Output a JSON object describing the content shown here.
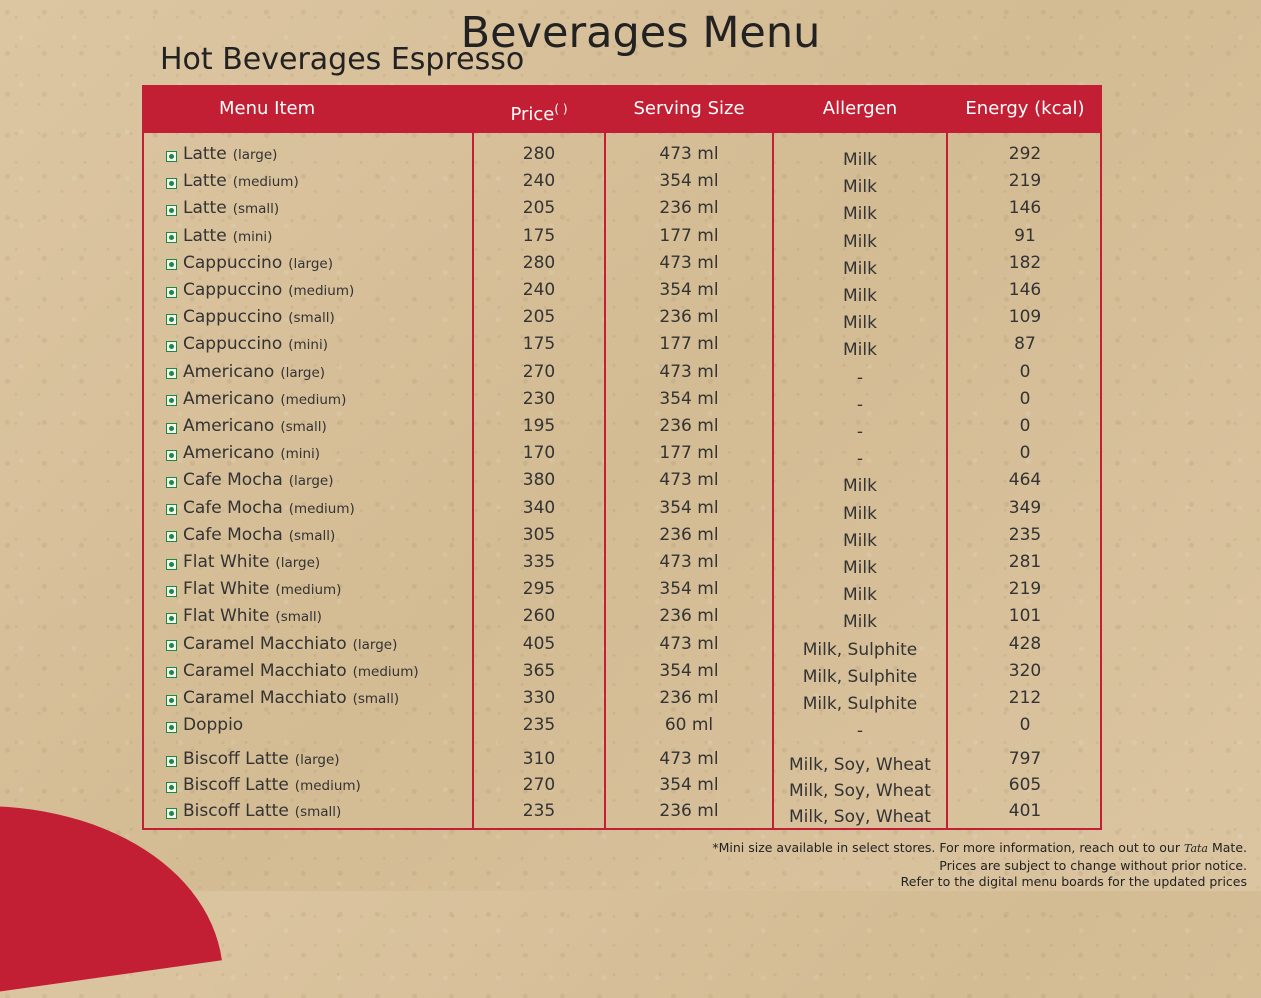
{
  "title": "Beverages Menu",
  "subtitle": "Hot Beverages Espresso",
  "colors": {
    "accent": "#c21f34",
    "veg_mark": "#1c8a3d",
    "paper": "#d9c4a0"
  },
  "table": {
    "headers": {
      "item": "Menu Item",
      "price": "Price",
      "price_symbol": "( )",
      "size": "Serving Size",
      "allergen": "Allergen",
      "energy": "Energy (kcal)"
    },
    "rows": [
      {
        "name": "Latte",
        "size_label": "(large)",
        "price": "280",
        "serving": "473 ml",
        "allergen": "Milk",
        "energy": "292"
      },
      {
        "name": "Latte",
        "size_label": "(medium)",
        "price": "240",
        "serving": "354 ml",
        "allergen": "Milk",
        "energy": "219"
      },
      {
        "name": "Latte",
        "size_label": "(small)",
        "price": "205",
        "serving": "236 ml",
        "allergen": "Milk",
        "energy": "146"
      },
      {
        "name": "Latte",
        "size_label": "(mini)",
        "price": "175",
        "serving": "177 ml",
        "allergen": "Milk",
        "energy": "91"
      },
      {
        "name": "Cappuccino",
        "size_label": "(large)",
        "price": "280",
        "serving": "473 ml",
        "allergen": "Milk",
        "energy": "182"
      },
      {
        "name": "Cappuccino",
        "size_label": "(medium)",
        "price": "240",
        "serving": "354 ml",
        "allergen": "Milk",
        "energy": "146"
      },
      {
        "name": "Cappuccino",
        "size_label": "(small)",
        "price": "205",
        "serving": "236 ml",
        "allergen": "Milk",
        "energy": "109"
      },
      {
        "name": "Cappuccino",
        "size_label": "(mini)",
        "price": "175",
        "serving": "177 ml",
        "allergen": "Milk",
        "energy": "87"
      },
      {
        "name": "Americano",
        "size_label": "(large)",
        "price": "270",
        "serving": "473 ml",
        "allergen": "-",
        "energy": "0"
      },
      {
        "name": "Americano",
        "size_label": "(medium)",
        "price": "230",
        "serving": "354 ml",
        "allergen": "-",
        "energy": "0"
      },
      {
        "name": "Americano",
        "size_label": "(small)",
        "price": "195",
        "serving": "236 ml",
        "allergen": "-",
        "energy": "0"
      },
      {
        "name": "Americano",
        "size_label": "(mini)",
        "price": "170",
        "serving": "177 ml",
        "allergen": "-",
        "energy": "0"
      },
      {
        "name": "Cafe Mocha",
        "size_label": "(large)",
        "price": "380",
        "serving": "473 ml",
        "allergen": "Milk",
        "energy": "464"
      },
      {
        "name": "Cafe Mocha",
        "size_label": "(medium)",
        "price": "340",
        "serving": "354 ml",
        "allergen": "Milk",
        "energy": "349"
      },
      {
        "name": "Cafe Mocha",
        "size_label": "(small)",
        "price": "305",
        "serving": "236 ml",
        "allergen": "Milk",
        "energy": "235"
      },
      {
        "name": "Flat White",
        "size_label": "(large)",
        "price": "335",
        "serving": "473 ml",
        "allergen": "Milk",
        "energy": "281"
      },
      {
        "name": "Flat White",
        "size_label": "(medium)",
        "price": "295",
        "serving": "354 ml",
        "allergen": "Milk",
        "energy": "219"
      },
      {
        "name": "Flat White",
        "size_label": "(small)",
        "price": "260",
        "serving": "236 ml",
        "allergen": "Milk",
        "energy": "101"
      },
      {
        "name": "Caramel Macchiato",
        "size_label": "(large)",
        "price": "405",
        "serving": "473 ml",
        "allergen": "Milk, Sulphite",
        "energy": "428"
      },
      {
        "name": "Caramel Macchiato",
        "size_label": "(medium)",
        "price": "365",
        "serving": "354 ml",
        "allergen": "Milk, Sulphite",
        "energy": "320"
      },
      {
        "name": "Caramel Macchiato",
        "size_label": "(small)",
        "price": "330",
        "serving": "236 ml",
        "allergen": "Milk, Sulphite",
        "energy": "212"
      },
      {
        "name": "Doppio",
        "size_label": "",
        "price": "235",
        "serving": "60 ml",
        "allergen": "-",
        "energy": "0"
      },
      {
        "name": "Biscoff Latte",
        "size_label": "(large)",
        "price": "310",
        "serving": "473 ml",
        "allergen": "Milk, Soy, Wheat",
        "energy": "797"
      },
      {
        "name": "Biscoff Latte",
        "size_label": "(medium)",
        "price": "270",
        "serving": "354 ml",
        "allergen": "Milk, Soy, Wheat",
        "energy": "605"
      },
      {
        "name": "Biscoff Latte",
        "size_label": "(small)",
        "price": "235",
        "serving": "236 ml",
        "allergen": "Milk, Soy, Wheat",
        "energy": "401"
      }
    ]
  },
  "footnotes": {
    "line1_prefix": "*Mini size available in select stores. For more information, reach out to our",
    "line1_brand": "Tata",
    "line1_suffix": "Mate.",
    "line2": "Prices are subject to change without prior notice.",
    "line3": "Refer to the digital menu boards for the updated prices"
  }
}
